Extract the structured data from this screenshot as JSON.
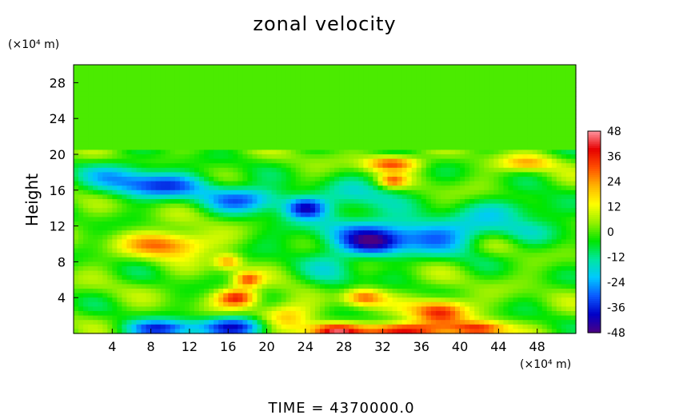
{
  "chart_data": {
    "type": "heatmap",
    "title": "zonal velocity",
    "ylabel": "Height",
    "xunit": "(×10⁴ m)",
    "yunit": "(×10⁴ m)",
    "xlim": [
      0,
      52
    ],
    "ylim": [
      0,
      30
    ],
    "xticks": [
      4,
      8,
      12,
      16,
      20,
      24,
      28,
      32,
      36,
      40,
      44,
      48
    ],
    "yticks": [
      4,
      8,
      12,
      16,
      20,
      24,
      28
    ],
    "colorbar": {
      "min": -48,
      "max": 48,
      "ticks": [
        48,
        36,
        24,
        12,
        0,
        -12,
        -24,
        -36,
        -48
      ],
      "colormap": [
        "#4b0082",
        "#0000c8",
        "#0a5aff",
        "#00c8ff",
        "#00e6a0",
        "#00e600",
        "#96f000",
        "#ffff00",
        "#ffb400",
        "#ff5000",
        "#e60000",
        "#ff96a0"
      ]
    },
    "background_value": 0,
    "features": [
      {
        "x": 10,
        "y": 10,
        "sx": 3,
        "sy": 1,
        "value": 30
      },
      {
        "x": 9,
        "y": 16.5,
        "sx": 4,
        "sy": 1,
        "value": -30
      },
      {
        "x": 5,
        "y": 18,
        "sx": 3,
        "sy": 1,
        "value": -15
      },
      {
        "x": 18,
        "y": 15,
        "sx": 3,
        "sy": 1,
        "value": -28
      },
      {
        "x": 24,
        "y": 14,
        "sx": 1.5,
        "sy": 0.8,
        "value": -32
      },
      {
        "x": 29,
        "y": 15,
        "sx": 3,
        "sy": 1.5,
        "value": -15
      },
      {
        "x": 36,
        "y": 11,
        "sx": 8,
        "sy": 1.5,
        "value": -28
      },
      {
        "x": 31,
        "y": 10,
        "sx": 2,
        "sy": 1,
        "value": -25
      },
      {
        "x": 33,
        "y": 19,
        "sx": 2,
        "sy": 0.6,
        "value": 32
      },
      {
        "x": 47,
        "y": 19,
        "sx": 2,
        "sy": 0.6,
        "value": 20
      },
      {
        "x": 33,
        "y": 17,
        "sx": 1,
        "sy": 0.5,
        "value": 24
      },
      {
        "x": 46,
        "y": 14,
        "sx": 3,
        "sy": 1,
        "value": -15
      },
      {
        "x": 17,
        "y": 4,
        "sx": 1.5,
        "sy": 0.7,
        "value": 36
      },
      {
        "x": 22,
        "y": 2,
        "sx": 2,
        "sy": 1.2,
        "value": 20
      },
      {
        "x": 30,
        "y": 4,
        "sx": 1.5,
        "sy": 0.7,
        "value": 30
      },
      {
        "x": 38,
        "y": 2.5,
        "sx": 2,
        "sy": 1,
        "value": 36
      },
      {
        "x": 34,
        "y": 0.3,
        "sx": 2.5,
        "sy": 0.6,
        "value": 48
      },
      {
        "x": 27,
        "y": 0.3,
        "sx": 2,
        "sy": 0.6,
        "value": 40
      },
      {
        "x": 42,
        "y": 0.5,
        "sx": 2,
        "sy": 0.6,
        "value": 36
      },
      {
        "x": 9,
        "y": 0.5,
        "sx": 2.5,
        "sy": 0.7,
        "value": -36
      },
      {
        "x": 17,
        "y": 0.8,
        "sx": 2.5,
        "sy": 0.8,
        "value": -36
      },
      {
        "x": 27,
        "y": 7,
        "sx": 2,
        "sy": 2,
        "value": -12
      },
      {
        "x": 44,
        "y": 10,
        "sx": 2,
        "sy": 1,
        "value": 12
      },
      {
        "x": 18,
        "y": 6,
        "sx": 1,
        "sy": 0.6,
        "value": 28
      },
      {
        "x": 16,
        "y": 8,
        "sx": 1,
        "sy": 0.6,
        "value": 24
      }
    ]
  },
  "footer": {
    "time_label": "TIME = 4370000.0"
  }
}
